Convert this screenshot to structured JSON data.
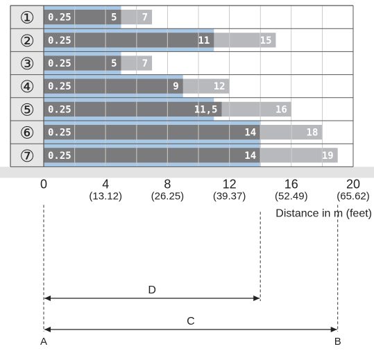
{
  "chart_data": {
    "type": "bar",
    "orientation": "horizontal",
    "rows": [
      {
        "label": "①",
        "min_label": "0.25",
        "value_dark": 5,
        "label_dark": "5",
        "value_light": 7,
        "label_light": "7",
        "value_blue": 5
      },
      {
        "label": "②",
        "min_label": "0.25",
        "value_dark": 11,
        "label_dark": "11",
        "value_light": 15,
        "label_light": "15",
        "value_blue": 11
      },
      {
        "label": "③",
        "min_label": "0.25",
        "value_dark": 5,
        "label_dark": "5",
        "value_light": 7,
        "label_light": "7",
        "value_blue": 5
      },
      {
        "label": "④",
        "min_label": "0.25",
        "value_dark": 9,
        "label_dark": "9",
        "value_light": 12,
        "label_light": "12",
        "value_blue": 9
      },
      {
        "label": "⑤",
        "min_label": "0.25",
        "value_dark": 11.5,
        "label_dark": "11,5",
        "value_light": 16,
        "label_light": "16",
        "value_blue": 11
      },
      {
        "label": "⑥",
        "min_label": "0.25",
        "value_dark": 14,
        "label_dark": "14",
        "value_light": 18,
        "label_light": "18",
        "value_blue": 14
      },
      {
        "label": "⑦",
        "min_label": "0.25",
        "value_dark": 14,
        "label_dark": "14",
        "value_light": 19,
        "label_light": "19",
        "value_blue": 14
      }
    ],
    "x_ticks": [
      {
        "value": 0,
        "label": "0",
        "sublabel": ""
      },
      {
        "value": 4,
        "label": "4",
        "sublabel": "(13.12)"
      },
      {
        "value": 8,
        "label": "8",
        "sublabel": "(26.25)"
      },
      {
        "value": 12,
        "label": "12",
        "sublabel": "(39.37)"
      },
      {
        "value": 16,
        "label": "16",
        "sublabel": "(52.49)"
      },
      {
        "value": 20,
        "label": "20",
        "sublabel": "(65.62)"
      }
    ],
    "xlabel": "Distance in m (feet)",
    "xlim": [
      0,
      20
    ],
    "grid": true,
    "colors": {
      "dark": "#7b7b7e",
      "light": "#b8b9bc",
      "blue": "#a9c8e6",
      "label_col": "#e6e6e6",
      "axis_band": "#e3e3e3"
    },
    "dimension_lines": [
      {
        "label": "D",
        "start_value": 0,
        "end_value": 14
      },
      {
        "label": "C",
        "start_value": 0,
        "end_value": 19
      }
    ],
    "reference_points": [
      {
        "label": "A",
        "value": 0
      },
      {
        "label": "B",
        "value": 19
      }
    ]
  }
}
